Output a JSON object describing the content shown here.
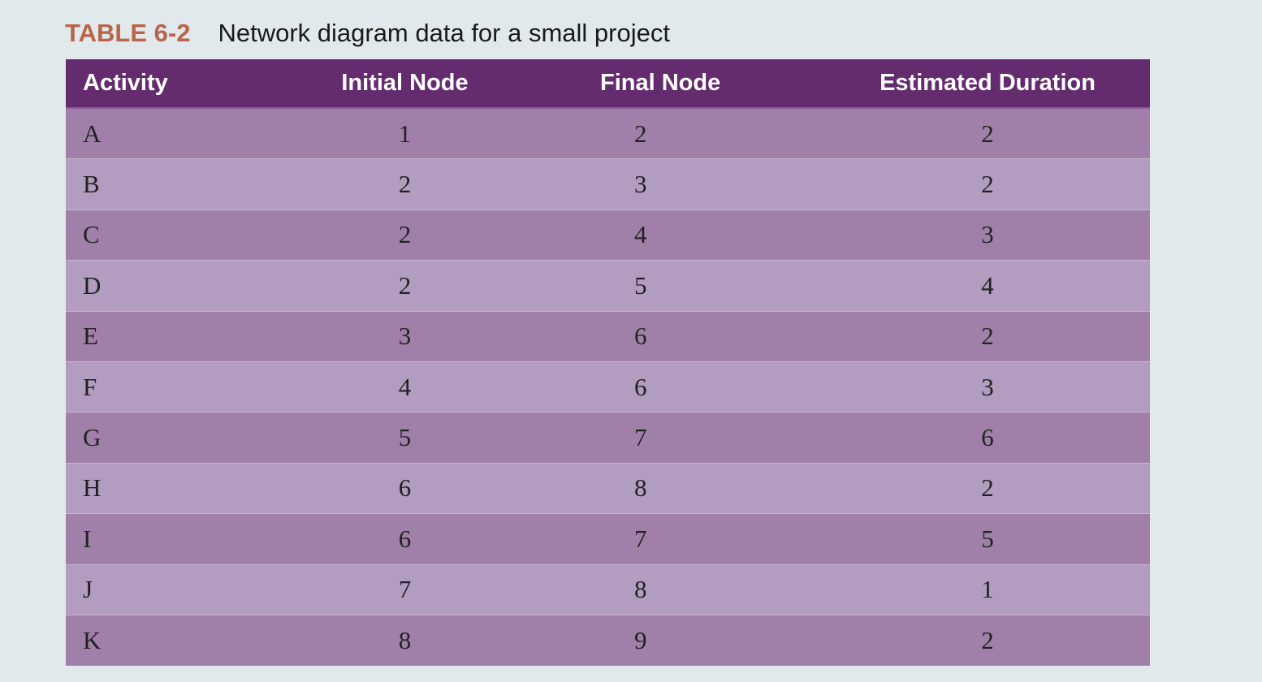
{
  "caption": {
    "label": "TABLE 6-2",
    "title": "Network diagram data for a small project"
  },
  "table": {
    "columns": [
      "Activity",
      "Initial Node",
      "Final Node",
      "Estimated Duration"
    ],
    "rows": [
      [
        "A",
        "1",
        "2",
        "2"
      ],
      [
        "B",
        "2",
        "3",
        "2"
      ],
      [
        "C",
        "2",
        "4",
        "3"
      ],
      [
        "D",
        "2",
        "5",
        "4"
      ],
      [
        "E",
        "3",
        "6",
        "2"
      ],
      [
        "F",
        "4",
        "6",
        "3"
      ],
      [
        "G",
        "5",
        "7",
        "6"
      ],
      [
        "H",
        "6",
        "8",
        "2"
      ],
      [
        "I",
        "6",
        "7",
        "5"
      ],
      [
        "J",
        "7",
        "8",
        "1"
      ],
      [
        "K",
        "8",
        "9",
        "2"
      ]
    ]
  },
  "colors": {
    "header_bg": "#642c6e",
    "row_dark": "#a080a9",
    "row_light": "#b29cbf",
    "caption_accent": "#b8654a",
    "page_bg": "#e1e9ec"
  }
}
